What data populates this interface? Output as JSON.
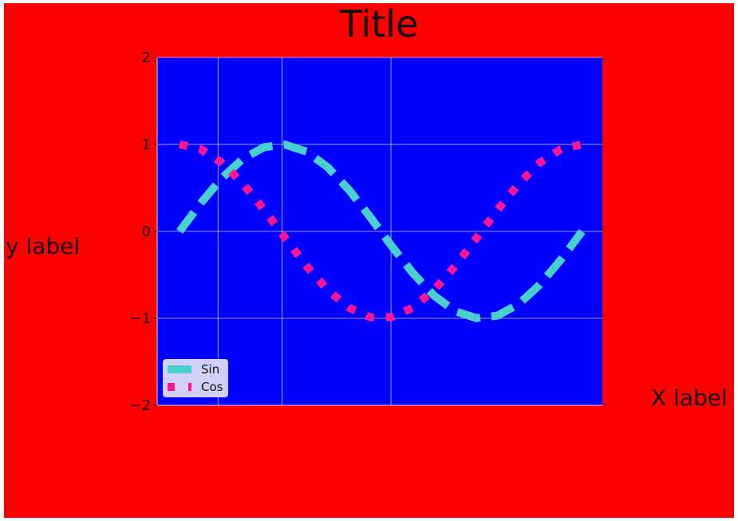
{
  "chart_data": {
    "type": "line",
    "title": "Title",
    "xlabel": "X label",
    "ylabel": "y label",
    "ylim": [
      -2,
      2
    ],
    "xlim": [
      -0.35,
      6.6
    ],
    "yticks": [
      2,
      1,
      0,
      -1,
      -2
    ],
    "ytick_labels": [
      "2",
      "1",
      "0",
      "−1",
      "−2"
    ],
    "grid": true,
    "legend_position": "lower-left",
    "series": [
      {
        "name": "Sin",
        "style": "dashed",
        "x": [
          0.0,
          0.3307,
          0.6614,
          0.9921,
          1.3228,
          1.6535,
          1.9842,
          2.3149,
          2.6456,
          2.9762,
          3.3069,
          3.6376,
          3.9683,
          4.299,
          4.6297,
          4.9604,
          5.2911,
          5.6218,
          5.9525,
          6.2832
        ],
        "y": [
          0.0,
          0.325,
          0.614,
          0.837,
          0.969,
          0.997,
          0.916,
          0.736,
          0.476,
          0.165,
          -0.165,
          -0.476,
          -0.736,
          -0.916,
          -0.997,
          -0.969,
          -0.837,
          -0.614,
          -0.325,
          0.0
        ]
      },
      {
        "name": "Cos",
        "style": "dotted",
        "x": [
          0.0,
          0.3307,
          0.6614,
          0.9921,
          1.3228,
          1.6535,
          1.9842,
          2.3149,
          2.6456,
          2.9762,
          3.3069,
          3.6376,
          3.9683,
          4.299,
          4.6297,
          4.9604,
          5.2911,
          5.6218,
          5.9525,
          6.2832
        ],
        "y": [
          1.0,
          0.946,
          0.789,
          0.546,
          0.245,
          -0.082,
          -0.401,
          -0.677,
          -0.879,
          -0.986,
          -0.986,
          -0.879,
          -0.677,
          -0.401,
          -0.082,
          0.245,
          0.546,
          0.789,
          0.946,
          1.0
        ]
      }
    ]
  },
  "colors": {
    "figure_background": "#ff0000",
    "axes_background": "#0000ff",
    "grid": "#c8c8c8",
    "sin_line": "#48d1cc",
    "cos_line": "#ff1493",
    "legend_background": "#d0d0f8"
  }
}
